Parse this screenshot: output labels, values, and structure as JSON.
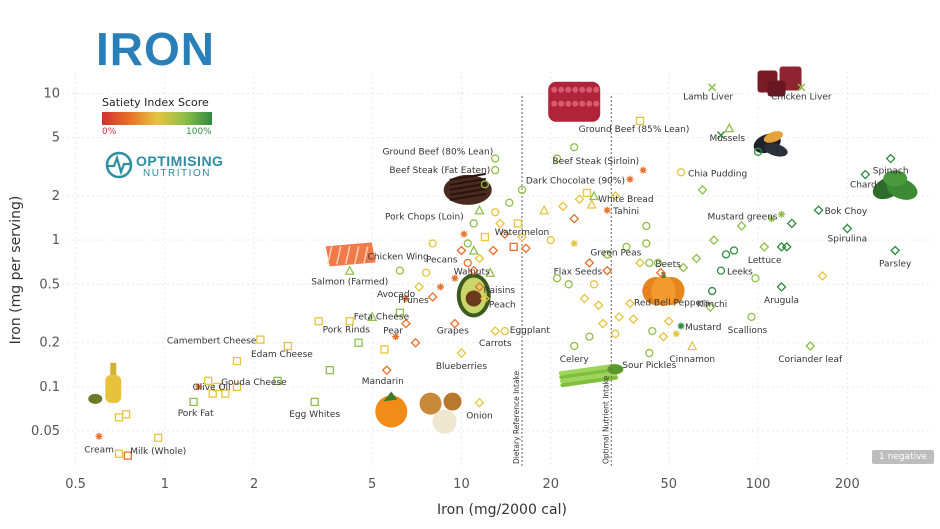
{
  "header": {
    "title": "IRON"
  },
  "legend": {
    "title": "Satiety Index Score",
    "min_label": "0%",
    "max_label": "100%"
  },
  "logo": {
    "name": "OPTIMISING",
    "sub": "NUTRITION"
  },
  "badge": {
    "label": "1 negative"
  },
  "chart_data": {
    "type": "scatter",
    "xlabel": "Iron (mg/2000 cal)",
    "ylabel": "Iron (mg per serving)",
    "xscale": "log",
    "yscale": "log",
    "xlim": [
      0.45,
      380
    ],
    "ylim": [
      0.028,
      14
    ],
    "xticks": [
      0.5,
      1,
      2,
      5,
      10,
      20,
      50,
      100,
      200
    ],
    "yticks": [
      0.05,
      0.1,
      0.2,
      0.5,
      1,
      2,
      5,
      10
    ],
    "reference_lines": [
      {
        "label": "Dietary Reference Intake",
        "x": 16
      },
      {
        "label": "Optimal Nutrient Intake",
        "x": 32
      }
    ],
    "colors": {
      "green": "#2e8b3e",
      "lightgreen": "#8fbf4a",
      "yellow": "#e6c440",
      "orange": "#e8702a",
      "red": "#d0312d"
    },
    "labeled_points": [
      {
        "name": "Lamb Liver",
        "x": 70,
        "y": 11,
        "color": "#8fbf4a",
        "marker": "x"
      },
      {
        "name": "Chicken Liver",
        "x": 140,
        "y": 11,
        "color": "#8fbf4a",
        "marker": "x"
      },
      {
        "name": "Mussels",
        "x": 80,
        "y": 5.8,
        "color": "#8fbf4a",
        "marker": "triangle"
      },
      {
        "name": "Ground Beef (85% Lean)",
        "x": 40,
        "y": 6.5,
        "color": "#e6c440",
        "marker": "square"
      },
      {
        "name": "Ground Beef (80% Lean)",
        "x": 13,
        "y": 3.6,
        "color": "#8fbf4a",
        "marker": "circle"
      },
      {
        "name": "Beef Steak (Sirloin)",
        "x": 41,
        "y": 3.0,
        "color": "#e8702a",
        "marker": "asterisk"
      },
      {
        "name": "Beef Steak (Fat Eaten)",
        "x": 13,
        "y": 3.0,
        "color": "#8fbf4a",
        "marker": "circle"
      },
      {
        "name": "Chia Pudding",
        "x": 55,
        "y": 2.9,
        "color": "#e6c440",
        "marker": "circle"
      },
      {
        "name": "Dark Chocolate (90%)",
        "x": 37,
        "y": 2.6,
        "color": "#e8702a",
        "marker": "asterisk"
      },
      {
        "name": "White Bread",
        "x": 28,
        "y": 2.0,
        "color": "#8fbf4a",
        "marker": "triangle"
      },
      {
        "name": "Spinach",
        "x": 280,
        "y": 3.6,
        "color": "#2e8b3e",
        "marker": "diamond"
      },
      {
        "name": "Chard",
        "x": 230,
        "y": 2.8,
        "color": "#2e8b3e",
        "marker": "diamond"
      },
      {
        "name": "Tahini",
        "x": 31,
        "y": 1.6,
        "color": "#e8702a",
        "marker": "asterisk"
      },
      {
        "name": "Pork Chops (Loin)",
        "x": 11,
        "y": 1.3,
        "color": "#8fbf4a",
        "marker": "circle"
      },
      {
        "name": "Mustard greens",
        "x": 120,
        "y": 1.5,
        "color": "#8fbf4a",
        "marker": "asterisk"
      },
      {
        "name": "Bok Choy",
        "x": 160,
        "y": 1.6,
        "color": "#2e8b3e",
        "marker": "diamond"
      },
      {
        "name": "Watermelon",
        "x": 16,
        "y": 1.05,
        "color": "#e6c440",
        "marker": "diamond"
      },
      {
        "name": "Chicken Wing",
        "x": 8,
        "y": 0.95,
        "color": "#e6c440",
        "marker": "circle"
      },
      {
        "name": "Green Peas",
        "x": 42,
        "y": 0.95,
        "color": "#8fbf4a",
        "marker": "circle"
      },
      {
        "name": "Spirulina",
        "x": 200,
        "y": 1.2,
        "color": "#2e8b3e",
        "marker": "diamond"
      },
      {
        "name": "Lettuce",
        "x": 120,
        "y": 0.9,
        "color": "#2e8b3e",
        "marker": "diamond"
      },
      {
        "name": "Pecans",
        "x": 10,
        "y": 0.85,
        "color": "#e8702a",
        "marker": "diamond"
      },
      {
        "name": "Parsley",
        "x": 290,
        "y": 0.85,
        "color": "#2e8b3e",
        "marker": "diamond"
      },
      {
        "name": "Beets",
        "x": 43,
        "y": 0.7,
        "color": "#8fbf4a",
        "marker": "circle"
      },
      {
        "name": "Salmon (Farmed)",
        "x": 4.2,
        "y": 0.62,
        "color": "#8fbf4a",
        "marker": "triangle"
      },
      {
        "name": "Walnuts",
        "x": 11,
        "y": 0.62,
        "color": "#e8702a",
        "marker": "diamond"
      },
      {
        "name": "Flax Seeds",
        "x": 31,
        "y": 0.62,
        "color": "#e8702a",
        "marker": "diamond"
      },
      {
        "name": "Leeks",
        "x": 75,
        "y": 0.62,
        "color": "#2e8b3e",
        "marker": "circle"
      },
      {
        "name": "Avocado",
        "x": 7.2,
        "y": 0.48,
        "color": "#e6c440",
        "marker": "diamond"
      },
      {
        "name": "Raisins",
        "x": 11.5,
        "y": 0.48,
        "color": "#e8702a",
        "marker": "diamond"
      },
      {
        "name": "Prunes",
        "x": 8,
        "y": 0.41,
        "color": "#e8702a",
        "marker": "diamond"
      },
      {
        "name": "Peach",
        "x": 12,
        "y": 0.4,
        "color": "#e6c440",
        "marker": "diamond"
      },
      {
        "name": "Kimchi",
        "x": 70,
        "y": 0.45,
        "color": "#2e8b3e",
        "marker": "circle"
      },
      {
        "name": "Arugula",
        "x": 120,
        "y": 0.48,
        "color": "#2e8b3e",
        "marker": "diamond"
      },
      {
        "name": "Feta Cheese",
        "x": 4.2,
        "y": 0.28,
        "color": "#e6c440",
        "marker": "square"
      },
      {
        "name": "Red Bell Peppers",
        "x": 37,
        "y": 0.37,
        "color": "#e6c440",
        "marker": "diamond"
      },
      {
        "name": "Pear",
        "x": 6.5,
        "y": 0.27,
        "color": "#e8702a",
        "marker": "diamond"
      },
      {
        "name": "Grapes",
        "x": 9.5,
        "y": 0.27,
        "color": "#e8702a",
        "marker": "diamond"
      },
      {
        "name": "Mustard",
        "x": 55,
        "y": 0.26,
        "color": "#2e8b3e",
        "marker": "asterisk"
      },
      {
        "name": "Scallions",
        "x": 95,
        "y": 0.3,
        "color": "#8fbf4a",
        "marker": "circle"
      },
      {
        "name": "Pork Rinds",
        "x": 3.3,
        "y": 0.28,
        "color": "#e6c440",
        "marker": "square"
      },
      {
        "name": "Camembert Cheese",
        "x": 2.1,
        "y": 0.21,
        "color": "#e6c440",
        "marker": "square"
      },
      {
        "name": "Eggplant",
        "x": 14,
        "y": 0.24,
        "color": "#e6c440",
        "marker": "circle"
      },
      {
        "name": "Carrots",
        "x": 13,
        "y": 0.24,
        "color": "#e6c440",
        "marker": "diamond"
      },
      {
        "name": "Edam Cheese",
        "x": 2.6,
        "y": 0.19,
        "color": "#e6c440",
        "marker": "square"
      },
      {
        "name": "Celery",
        "x": 24,
        "y": 0.19,
        "color": "#8fbf4a",
        "marker": "circle"
      },
      {
        "name": "Cinnamon",
        "x": 60,
        "y": 0.19,
        "color": "#e6c440",
        "marker": "triangle"
      },
      {
        "name": "Coriander leaf",
        "x": 150,
        "y": 0.19,
        "color": "#8fbf4a",
        "marker": "diamond"
      },
      {
        "name": "Sour Pickles",
        "x": 43,
        "y": 0.17,
        "color": "#8fbf4a",
        "marker": "circle"
      },
      {
        "name": "Blueberries",
        "x": 10,
        "y": 0.17,
        "color": "#e6c440",
        "marker": "diamond"
      },
      {
        "name": "Gouda Cheese",
        "x": 1.5,
        "y": 0.1,
        "color": "#e6c440",
        "marker": "square"
      },
      {
        "name": "Mandarin",
        "x": 5.6,
        "y": 0.13,
        "color": "#e8702a",
        "marker": "diamond"
      },
      {
        "name": "Olive Oil",
        "x": 1.3,
        "y": 0.1,
        "color": "#e8702a",
        "marker": "asterisk"
      },
      {
        "name": "Pork Fat",
        "x": 1.25,
        "y": 0.079,
        "color": "#8fbf4a",
        "marker": "square"
      },
      {
        "name": "Egg Whites",
        "x": 3.2,
        "y": 0.079,
        "color": "#8fbf4a",
        "marker": "square"
      },
      {
        "name": "Onion",
        "x": 11.5,
        "y": 0.078,
        "color": "#e6c440",
        "marker": "diamond"
      },
      {
        "name": "Cream",
        "x": 0.6,
        "y": 0.046,
        "color": "#e8702a",
        "marker": "asterisk"
      },
      {
        "name": "Milk (Whole)",
        "x": 0.95,
        "y": 0.045,
        "color": "#e6c440",
        "marker": "square"
      }
    ],
    "unlabeled_points": [
      {
        "x": 0.7,
        "y": 0.035,
        "color": "#e6c440",
        "marker": "square"
      },
      {
        "x": 0.75,
        "y": 0.034,
        "color": "#e8702a",
        "marker": "square"
      },
      {
        "x": 0.7,
        "y": 0.062,
        "color": "#e6c440",
        "marker": "square"
      },
      {
        "x": 0.74,
        "y": 0.065,
        "color": "#e6c440",
        "marker": "square"
      },
      {
        "x": 1.45,
        "y": 0.09,
        "color": "#e6c440",
        "marker": "square"
      },
      {
        "x": 1.6,
        "y": 0.09,
        "color": "#e6c440",
        "marker": "square"
      },
      {
        "x": 1.75,
        "y": 0.1,
        "color": "#e6c440",
        "marker": "square"
      },
      {
        "x": 1.4,
        "y": 0.11,
        "color": "#e6c440",
        "marker": "square"
      },
      {
        "x": 2.4,
        "y": 0.11,
        "color": "#8fbf4a",
        "marker": "square"
      },
      {
        "x": 1.75,
        "y": 0.15,
        "color": "#e6c440",
        "marker": "square"
      },
      {
        "x": 3.6,
        "y": 0.13,
        "color": "#8fbf4a",
        "marker": "square"
      },
      {
        "x": 4.5,
        "y": 0.2,
        "color": "#8fbf4a",
        "marker": "square"
      },
      {
        "x": 5.5,
        "y": 0.18,
        "color": "#e6c440",
        "marker": "square"
      },
      {
        "x": 5.0,
        "y": 0.3,
        "color": "#8fbf4a",
        "marker": "triangle"
      },
      {
        "x": 6.2,
        "y": 0.32,
        "color": "#8fbf4a",
        "marker": "square"
      },
      {
        "x": 6.0,
        "y": 0.22,
        "color": "#e8702a",
        "marker": "asterisk"
      },
      {
        "x": 7.0,
        "y": 0.2,
        "color": "#e8702a",
        "marker": "diamond"
      },
      {
        "x": 6.5,
        "y": 0.4,
        "color": "#e8702a",
        "marker": "asterisk"
      },
      {
        "x": 6.2,
        "y": 0.62,
        "color": "#8fbf4a",
        "marker": "circle"
      },
      {
        "x": 7.6,
        "y": 0.6,
        "color": "#e6c440",
        "marker": "circle"
      },
      {
        "x": 8.5,
        "y": 0.48,
        "color": "#e8702a",
        "marker": "asterisk"
      },
      {
        "x": 9.5,
        "y": 0.55,
        "color": "#e8702a",
        "marker": "asterisk"
      },
      {
        "x": 10.5,
        "y": 0.7,
        "color": "#e8702a",
        "marker": "circle"
      },
      {
        "x": 11.5,
        "y": 0.75,
        "color": "#e6c440",
        "marker": "diamond"
      },
      {
        "x": 12.5,
        "y": 0.6,
        "color": "#8fbf4a",
        "marker": "triangle"
      },
      {
        "x": 10.5,
        "y": 0.95,
        "color": "#8fbf4a",
        "marker": "circle"
      },
      {
        "x": 11.0,
        "y": 0.85,
        "color": "#8fbf4a",
        "marker": "triangle"
      },
      {
        "x": 10.2,
        "y": 1.1,
        "color": "#e8702a",
        "marker": "asterisk"
      },
      {
        "x": 12.8,
        "y": 0.85,
        "color": "#e8702a",
        "marker": "diamond"
      },
      {
        "x": 12.0,
        "y": 1.05,
        "color": "#e6c440",
        "marker": "square"
      },
      {
        "x": 13.5,
        "y": 1.3,
        "color": "#e6c440",
        "marker": "diamond"
      },
      {
        "x": 14.0,
        "y": 1.1,
        "color": "#e8702a",
        "marker": "diamond"
      },
      {
        "x": 15.0,
        "y": 0.9,
        "color": "#e8702a",
        "marker": "square"
      },
      {
        "x": 16.5,
        "y": 0.88,
        "color": "#e8702a",
        "marker": "diamond"
      },
      {
        "x": 15.5,
        "y": 1.3,
        "color": "#e6c440",
        "marker": "square"
      },
      {
        "x": 11.5,
        "y": 1.6,
        "color": "#8fbf4a",
        "marker": "triangle"
      },
      {
        "x": 13.0,
        "y": 1.55,
        "color": "#e6c440",
        "marker": "circle"
      },
      {
        "x": 14.5,
        "y": 1.8,
        "color": "#8fbf4a",
        "marker": "circle"
      },
      {
        "x": 16.0,
        "y": 2.2,
        "color": "#8fbf4a",
        "marker": "circle"
      },
      {
        "x": 12.0,
        "y": 2.4,
        "color": "#8fbf4a",
        "marker": "circle"
      },
      {
        "x": 19.0,
        "y": 1.6,
        "color": "#e6c440",
        "marker": "triangle"
      },
      {
        "x": 22.0,
        "y": 1.7,
        "color": "#e6c440",
        "marker": "diamond"
      },
      {
        "x": 24.0,
        "y": 1.4,
        "color": "#e8702a",
        "marker": "diamond"
      },
      {
        "x": 25.0,
        "y": 1.9,
        "color": "#e6c440",
        "marker": "diamond"
      },
      {
        "x": 27.5,
        "y": 1.75,
        "color": "#e6c440",
        "marker": "triangle"
      },
      {
        "x": 21.0,
        "y": 3.6,
        "color": "#8fbf4a",
        "marker": "circle"
      },
      {
        "x": 24.0,
        "y": 4.3,
        "color": "#8fbf4a",
        "marker": "circle"
      },
      {
        "x": 26.5,
        "y": 2.1,
        "color": "#e6c440",
        "marker": "square"
      },
      {
        "x": 33.0,
        "y": 2.0,
        "color": "#e6c440",
        "marker": "diamond"
      },
      {
        "x": 20.0,
        "y": 1.0,
        "color": "#e6c440",
        "marker": "circle"
      },
      {
        "x": 24.0,
        "y": 0.95,
        "color": "#e6c440",
        "marker": "asterisk"
      },
      {
        "x": 21.0,
        "y": 0.55,
        "color": "#8fbf4a",
        "marker": "circle"
      },
      {
        "x": 23.0,
        "y": 0.5,
        "color": "#8fbf4a",
        "marker": "circle"
      },
      {
        "x": 27.0,
        "y": 0.7,
        "color": "#e8702a",
        "marker": "diamond"
      },
      {
        "x": 31.0,
        "y": 0.8,
        "color": "#8fbf4a",
        "marker": "circle"
      },
      {
        "x": 36.0,
        "y": 0.9,
        "color": "#8fbf4a",
        "marker": "circle"
      },
      {
        "x": 28.0,
        "y": 0.5,
        "color": "#e6c440",
        "marker": "circle"
      },
      {
        "x": 26.0,
        "y": 0.4,
        "color": "#e6c440",
        "marker": "diamond"
      },
      {
        "x": 29.0,
        "y": 0.36,
        "color": "#e6c440",
        "marker": "diamond"
      },
      {
        "x": 34.0,
        "y": 0.3,
        "color": "#e6c440",
        "marker": "diamond"
      },
      {
        "x": 38.0,
        "y": 0.29,
        "color": "#e6c440",
        "marker": "diamond"
      },
      {
        "x": 30.0,
        "y": 0.27,
        "color": "#e6c440",
        "marker": "diamond"
      },
      {
        "x": 33.0,
        "y": 0.23,
        "color": "#e6c440",
        "marker": "circle"
      },
      {
        "x": 27.0,
        "y": 0.22,
        "color": "#8fbf4a",
        "marker": "circle"
      },
      {
        "x": 42.0,
        "y": 0.45,
        "color": "#e8702a",
        "marker": "circle"
      },
      {
        "x": 47.0,
        "y": 0.6,
        "color": "#e8702a",
        "marker": "diamond"
      },
      {
        "x": 50.0,
        "y": 0.28,
        "color": "#e6c440",
        "marker": "diamond"
      },
      {
        "x": 53.0,
        "y": 0.23,
        "color": "#e6c440",
        "marker": "asterisk"
      },
      {
        "x": 44.0,
        "y": 0.24,
        "color": "#8fbf4a",
        "marker": "circle"
      },
      {
        "x": 48.0,
        "y": 0.22,
        "color": "#e6c440",
        "marker": "diamond"
      },
      {
        "x": 40.0,
        "y": 0.7,
        "color": "#e6c440",
        "marker": "diamond"
      },
      {
        "x": 42.0,
        "y": 1.25,
        "color": "#8fbf4a",
        "marker": "circle"
      },
      {
        "x": 46.0,
        "y": 0.7,
        "color": "#8fbf4a",
        "marker": "circle"
      },
      {
        "x": 56.0,
        "y": 0.65,
        "color": "#8fbf4a",
        "marker": "diamond"
      },
      {
        "x": 62.0,
        "y": 0.75,
        "color": "#8fbf4a",
        "marker": "diamond"
      },
      {
        "x": 65.0,
        "y": 2.2,
        "color": "#8fbf4a",
        "marker": "diamond"
      },
      {
        "x": 69.0,
        "y": 0.35,
        "color": "#8fbf4a",
        "marker": "diamond"
      },
      {
        "x": 71.0,
        "y": 1.0,
        "color": "#8fbf4a",
        "marker": "diamond"
      },
      {
        "x": 78.0,
        "y": 0.8,
        "color": "#2e8b3e",
        "marker": "circle"
      },
      {
        "x": 83.0,
        "y": 0.85,
        "color": "#2e8b3e",
        "marker": "circle"
      },
      {
        "x": 88.0,
        "y": 1.25,
        "color": "#8fbf4a",
        "marker": "diamond"
      },
      {
        "x": 98.0,
        "y": 0.55,
        "color": "#8fbf4a",
        "marker": "circle"
      },
      {
        "x": 100.0,
        "y": 4.0,
        "color": "#2e8b3e",
        "marker": "circle"
      },
      {
        "x": 105.0,
        "y": 0.9,
        "color": "#8fbf4a",
        "marker": "diamond"
      },
      {
        "x": 111.0,
        "y": 1.4,
        "color": "#8fbf4a",
        "marker": "asterisk"
      },
      {
        "x": 125.0,
        "y": 0.9,
        "color": "#2e8b3e",
        "marker": "diamond"
      },
      {
        "x": 130.0,
        "y": 1.3,
        "color": "#2e8b3e",
        "marker": "diamond"
      },
      {
        "x": 165.0,
        "y": 0.57,
        "color": "#e6c440",
        "marker": "diamond"
      },
      {
        "x": 75.0,
        "y": 5.2,
        "color": "#2e8b3e",
        "marker": "x"
      }
    ],
    "images": [
      {
        "x": 24,
        "y": 8.5,
        "kind": "beef-mince"
      },
      {
        "x": 120,
        "y": 11.5,
        "kind": "liver"
      },
      {
        "x": 110,
        "y": 4.8,
        "kind": "mussels"
      },
      {
        "x": 10.5,
        "y": 2.2,
        "kind": "steak"
      },
      {
        "x": 4.2,
        "y": 0.8,
        "kind": "salmon"
      },
      {
        "x": 11.0,
        "y": 0.42,
        "kind": "avocado"
      },
      {
        "x": 48.0,
        "y": 0.45,
        "kind": "pumpkin"
      },
      {
        "x": 290,
        "y": 2.4,
        "kind": "spinach"
      },
      {
        "x": 27.0,
        "y": 0.12,
        "kind": "celery"
      },
      {
        "x": 5.8,
        "y": 0.068,
        "kind": "mandarin"
      },
      {
        "x": 8.5,
        "y": 0.07,
        "kind": "onion"
      },
      {
        "x": 0.67,
        "y": 0.1,
        "kind": "olive-oil"
      }
    ]
  }
}
